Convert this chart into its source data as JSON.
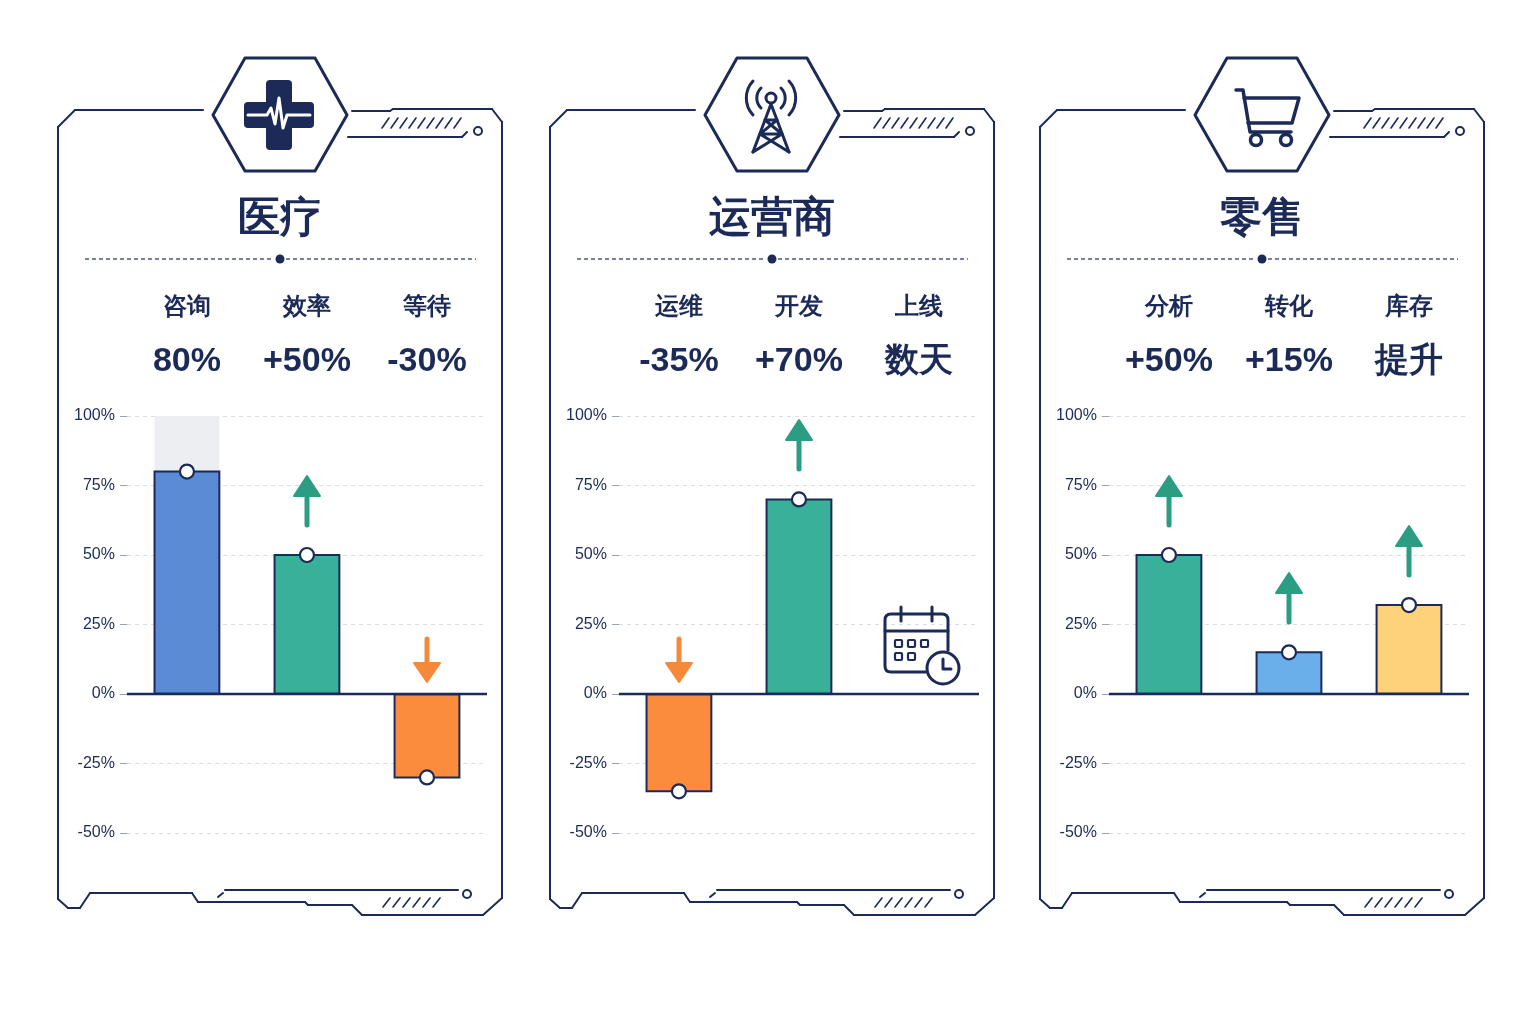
{
  "chart_data": [
    {
      "type": "bar",
      "title": "医疗",
      "categories": [
        "咨询",
        "效率",
        "等待"
      ],
      "series": [
        {
          "values": [
            80,
            50,
            -30
          ],
          "colors": [
            "#5b8bd4",
            "#38b09a",
            "#fb8c3e"
          ],
          "value_labels": [
            "80%",
            "+50%",
            "-30%"
          ]
        },
        {
          "values": [
            20,
            null,
            null
          ],
          "color": "#eceef1"
        },
        {
          "type": "scatter",
          "x": [
            "咨询",
            "效率",
            "等待"
          ],
          "values": [
            80,
            50,
            -30
          ],
          "color": "#ffffff"
        }
      ],
      "stacked": true,
      "ylim": [
        -50,
        100
      ],
      "yticks": [
        {
          "value": -50,
          "label": "-50%"
        },
        {
          "value": -25,
          "label": "-25%"
        },
        {
          "value": 0,
          "label": "0%"
        },
        {
          "value": 25,
          "label": "25%"
        },
        {
          "value": 50,
          "label": "50%"
        },
        {
          "value": 75,
          "label": "75%"
        },
        {
          "value": 100,
          "label": "100%"
        }
      ],
      "grid": "y",
      "marker": "circle"
    },
    {
      "type": "bar",
      "title": "运营商",
      "categories": [
        "运维",
        "开发",
        "上线"
      ],
      "series": [
        {
          "values": [
            -35,
            70,
            null
          ],
          "colors": [
            "#fb8c3e",
            "#38b09a",
            null
          ],
          "value_labels": [
            "-35%",
            "+70%",
            "数天"
          ]
        },
        {
          "type": "scatter",
          "x": [
            "运维",
            "开发"
          ],
          "values": [
            -35,
            70
          ],
          "color": "#ffffff"
        }
      ],
      "ylim": [
        -50,
        100
      ],
      "yticks": [
        {
          "value": -50,
          "label": "-50%"
        },
        {
          "value": -25,
          "label": "-25%"
        },
        {
          "value": 0,
          "label": "0%"
        },
        {
          "value": 25,
          "label": "25%"
        },
        {
          "value": 50,
          "label": "50%"
        },
        {
          "value": 75,
          "label": "75%"
        },
        {
          "value": 100,
          "label": "100%"
        }
      ],
      "grid": "y",
      "marker": "circle"
    },
    {
      "type": "bar",
      "title": "零售",
      "categories": [
        "分析",
        "转化",
        "库存"
      ],
      "series": [
        {
          "values": [
            50,
            15,
            32
          ],
          "colors": [
            "#38b09a",
            "#6aaeea",
            "#fdd27a"
          ],
          "value_labels": [
            "+50%",
            "+15%",
            "提升"
          ]
        },
        {
          "type": "scatter",
          "x": [
            "分析",
            "转化",
            "库存"
          ],
          "values": [
            50,
            15,
            32
          ],
          "color": "#ffffff"
        }
      ],
      "ylim": [
        -50,
        100
      ],
      "yticks": [
        {
          "value": -50,
          "label": "-50%"
        },
        {
          "value": -25,
          "label": "-25%"
        },
        {
          "value": 0,
          "label": "0%"
        },
        {
          "value": 25,
          "label": "25%"
        },
        {
          "value": 50,
          "label": "50%"
        },
        {
          "value": 75,
          "label": "75%"
        },
        {
          "value": 100,
          "label": "100%"
        }
      ],
      "grid": "y",
      "marker": "circle"
    }
  ]
}
